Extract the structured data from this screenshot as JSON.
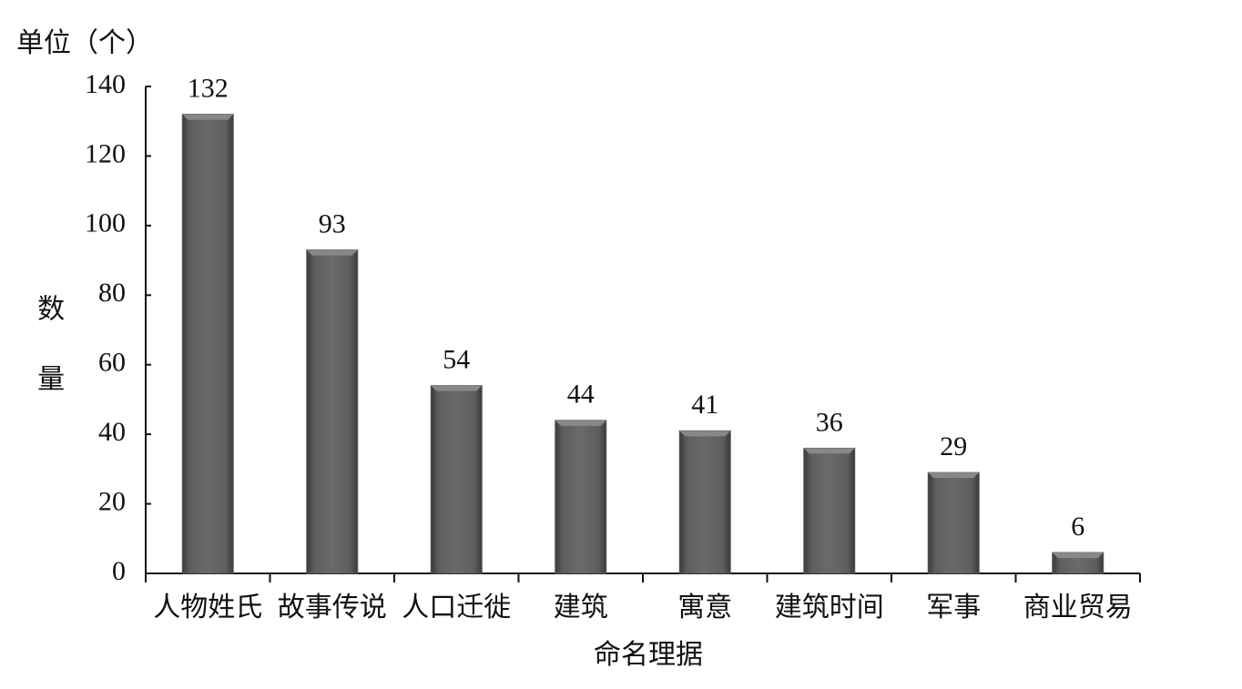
{
  "chart_data": {
    "type": "bar",
    "unit_label": "单位（个）",
    "y_label": "数量",
    "x_label": "命名理据",
    "categories": [
      "人物姓氏",
      "故事传说",
      "人口迁徙",
      "建筑",
      "寓意",
      "建筑时间",
      "军事",
      "商业贸易"
    ],
    "values": [
      132,
      93,
      54,
      44,
      41,
      36,
      29,
      6
    ],
    "color": "#5a5a5a",
    "ylim": [
      0,
      140
    ],
    "yticks": [
      0,
      20,
      40,
      60,
      80,
      100,
      120,
      140
    ],
    "grid": false
  }
}
